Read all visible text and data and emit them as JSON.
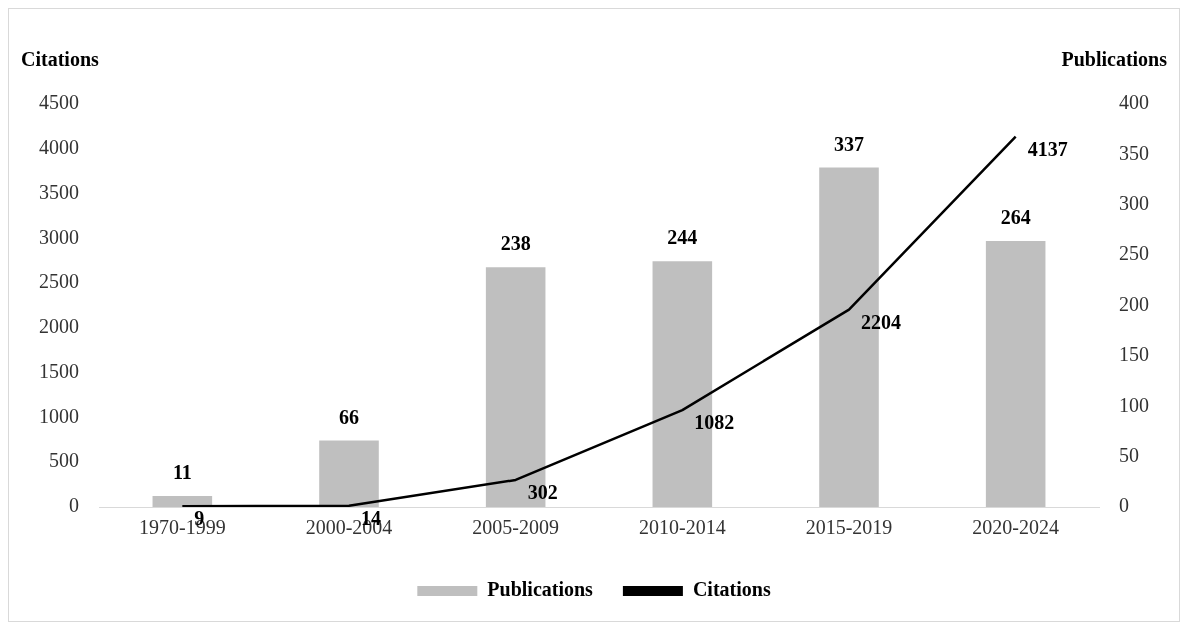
{
  "chart_data": {
    "type": "bar",
    "ylabel": "Citations",
    "y2label": "Publications",
    "categories": [
      "1970-1999",
      "2000-2004",
      "2005-2009",
      "2010-2014",
      "2015-2019",
      "2020-2024"
    ],
    "series": [
      {
        "name": "Publications",
        "axis": "y2",
        "color": "#bfbfbf",
        "values": [
          11,
          66,
          238,
          244,
          337,
          264
        ]
      },
      {
        "name": "Citations",
        "type": "line",
        "axis": "y",
        "color": "#000000",
        "values": [
          9,
          14,
          302,
          1082,
          2204,
          4137
        ]
      }
    ],
    "ylim": [
      0,
      4500
    ],
    "yticks": [
      0,
      500,
      1000,
      1500,
      2000,
      2500,
      3000,
      3500,
      4000,
      4500
    ],
    "y2lim": [
      0,
      400
    ],
    "y2ticks": [
      0,
      50,
      100,
      150,
      200,
      250,
      300,
      350,
      400
    ],
    "data_labels": true,
    "grid": false,
    "legend": "bottom",
    "marker": "none"
  }
}
